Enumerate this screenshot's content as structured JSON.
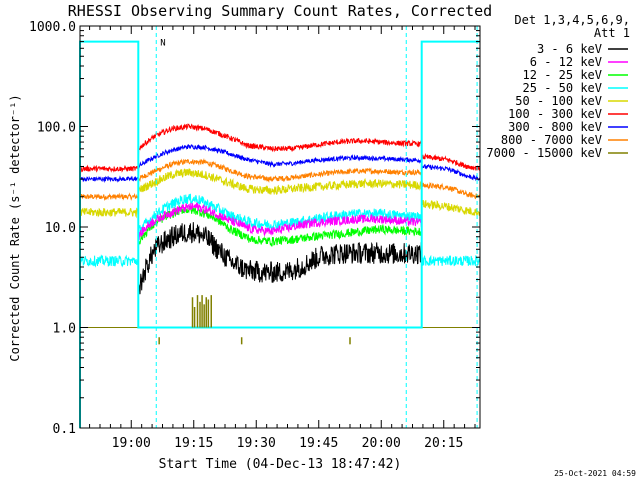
{
  "chart_data": {
    "type": "line",
    "title": "RHESSI Observing Summary Count Rates, Corrected",
    "xlabel": "Start Time (04-Dec-13 18:47:42)",
    "ylabel": "Corrected Count Rate (s⁻¹ detector⁻¹)",
    "x_unit": "minutes after 18:47:42",
    "xlim": [
      0,
      96
    ],
    "ylim": [
      0.1,
      1000
    ],
    "yscale": "log",
    "x_ticks": [
      {
        "x": 12.3,
        "label": "19:00"
      },
      {
        "x": 27.3,
        "label": "19:15"
      },
      {
        "x": 42.3,
        "label": "19:30"
      },
      {
        "x": 57.3,
        "label": "19:45"
      },
      {
        "x": 72.3,
        "label": "20:00"
      },
      {
        "x": 87.3,
        "label": "20:15"
      }
    ],
    "y_ticks": [
      {
        "y": 0.1,
        "label": "0.1"
      },
      {
        "y": 1,
        "label": "1.0"
      },
      {
        "y": 10,
        "label": "10.0"
      },
      {
        "y": 100,
        "label": "100.0"
      },
      {
        "y": 1000,
        "label": "1000.0"
      }
    ],
    "legend": {
      "placement": "right",
      "header": [
        "Det 1,3,4,5,6,9,",
        "Att 1"
      ]
    },
    "series": [
      {
        "name": "3 - 6 keV",
        "color": "#000000",
        "start": 14,
        "end": 82,
        "noise": 0.25,
        "points": [
          [
            14,
            2.2
          ],
          [
            16,
            4
          ],
          [
            18,
            6
          ],
          [
            21,
            7.5
          ],
          [
            24,
            8.6
          ],
          [
            27,
            9
          ],
          [
            30,
            8
          ],
          [
            33,
            6
          ],
          [
            36,
            4.5
          ],
          [
            40,
            3.7
          ],
          [
            45,
            3.5
          ],
          [
            50,
            3.6
          ],
          [
            54,
            4.2
          ],
          [
            58,
            5.2
          ],
          [
            63,
            5.5
          ],
          [
            68,
            5.5
          ],
          [
            72,
            5.5
          ],
          [
            76,
            5.4
          ],
          [
            80,
            5.5
          ],
          [
            82,
            5.5
          ]
        ]
      },
      {
        "name": "6 - 12 keV",
        "color": "#ff00ff",
        "start": 14,
        "end": 82,
        "noise": 0.1,
        "points": [
          [
            14,
            8
          ],
          [
            17,
            11
          ],
          [
            21,
            13.5
          ],
          [
            25,
            15.5
          ],
          [
            28,
            16
          ],
          [
            32,
            14
          ],
          [
            36,
            11.5
          ],
          [
            41,
            9.5
          ],
          [
            46,
            9
          ],
          [
            51,
            10
          ],
          [
            56,
            11
          ],
          [
            62,
            11.5
          ],
          [
            67,
            12
          ],
          [
            72,
            12
          ],
          [
            77,
            11.5
          ],
          [
            82,
            11
          ]
        ]
      },
      {
        "name": "12 - 25 keV",
        "color": "#00ff00",
        "start": 14,
        "end": 82,
        "noise": 0.1,
        "points": [
          [
            14,
            7
          ],
          [
            17,
            10
          ],
          [
            21,
            13
          ],
          [
            25,
            15
          ],
          [
            28,
            14.5
          ],
          [
            32,
            12.5
          ],
          [
            36,
            9.5
          ],
          [
            41,
            7.5
          ],
          [
            46,
            7.2
          ],
          [
            51,
            7.5
          ],
          [
            56,
            8
          ],
          [
            62,
            8.5
          ],
          [
            67,
            9
          ],
          [
            72,
            9.5
          ],
          [
            77,
            9.2
          ],
          [
            82,
            9
          ]
        ]
      },
      {
        "name": "25 - 50 keV",
        "color": "#00ffff",
        "start": 0,
        "end": 96,
        "noise": 0.12,
        "points": [
          [
            0,
            4.6
          ],
          [
            14,
            4.6
          ],
          [
            14,
            9
          ],
          [
            17,
            12
          ],
          [
            21,
            16
          ],
          [
            25,
            19
          ],
          [
            28,
            19
          ],
          [
            32,
            16
          ],
          [
            36,
            13
          ],
          [
            41,
            11
          ],
          [
            46,
            10.5
          ],
          [
            51,
            11
          ],
          [
            56,
            12
          ],
          [
            62,
            13
          ],
          [
            67,
            13.5
          ],
          [
            72,
            13.5
          ],
          [
            77,
            13
          ],
          [
            82,
            12.5
          ],
          [
            82,
            4.6
          ],
          [
            96,
            4.6
          ]
        ]
      },
      {
        "name": "50 - 100 keV",
        "color": "#d8d800",
        "start": 0,
        "end": 96,
        "noise": 0.1,
        "points": [
          [
            0,
            14
          ],
          [
            14,
            14
          ],
          [
            14,
            23
          ],
          [
            18,
            28
          ],
          [
            22,
            33
          ],
          [
            26,
            35
          ],
          [
            30,
            33
          ],
          [
            35,
            28
          ],
          [
            40,
            24
          ],
          [
            46,
            23
          ],
          [
            51,
            24
          ],
          [
            56,
            25
          ],
          [
            62,
            26
          ],
          [
            67,
            27
          ],
          [
            72,
            27
          ],
          [
            77,
            26.5
          ],
          [
            82,
            26
          ],
          [
            82,
            17
          ],
          [
            88,
            16
          ],
          [
            93,
            14.5
          ],
          [
            96,
            14
          ]
        ]
      },
      {
        "name": "100 - 300 keV",
        "color": "#ff0000",
        "start": 0,
        "end": 96,
        "noise": 0.06,
        "points": [
          [
            0,
            38
          ],
          [
            14,
            38
          ],
          [
            14,
            60
          ],
          [
            18,
            80
          ],
          [
            22,
            95
          ],
          [
            26,
            100
          ],
          [
            30,
            95
          ],
          [
            35,
            80
          ],
          [
            40,
            65
          ],
          [
            46,
            60
          ],
          [
            51,
            60
          ],
          [
            56,
            65
          ],
          [
            62,
            70
          ],
          [
            67,
            72
          ],
          [
            72,
            70
          ],
          [
            77,
            68
          ],
          [
            82,
            67
          ],
          [
            82,
            50
          ],
          [
            88,
            47
          ],
          [
            93,
            40
          ],
          [
            96,
            38
          ]
        ]
      },
      {
        "name": "300 - 800 keV",
        "color": "#0000ff",
        "start": 0,
        "end": 96,
        "noise": 0.05,
        "points": [
          [
            0,
            30
          ],
          [
            14,
            30
          ],
          [
            14,
            40
          ],
          [
            18,
            50
          ],
          [
            22,
            58
          ],
          [
            26,
            63
          ],
          [
            30,
            62
          ],
          [
            35,
            55
          ],
          [
            40,
            47
          ],
          [
            46,
            42
          ],
          [
            51,
            43
          ],
          [
            56,
            46
          ],
          [
            62,
            48
          ],
          [
            67,
            49
          ],
          [
            72,
            48
          ],
          [
            77,
            47
          ],
          [
            82,
            46
          ],
          [
            82,
            40
          ],
          [
            88,
            38
          ],
          [
            93,
            32
          ],
          [
            96,
            30
          ]
        ]
      },
      {
        "name": "800 - 7000 keV",
        "color": "#ff8000",
        "start": 0,
        "end": 96,
        "noise": 0.06,
        "points": [
          [
            0,
            20
          ],
          [
            14,
            20
          ],
          [
            14,
            30
          ],
          [
            18,
            36
          ],
          [
            22,
            42
          ],
          [
            26,
            45
          ],
          [
            30,
            44
          ],
          [
            35,
            38
          ],
          [
            40,
            32
          ],
          [
            46,
            30
          ],
          [
            51,
            31
          ],
          [
            56,
            33
          ],
          [
            62,
            35
          ],
          [
            67,
            36
          ],
          [
            72,
            36
          ],
          [
            77,
            35
          ],
          [
            82,
            35
          ],
          [
            82,
            26
          ],
          [
            88,
            25
          ],
          [
            93,
            21
          ],
          [
            96,
            20
          ]
        ]
      },
      {
        "name": "7000 - 15000 keV",
        "color": "#808000",
        "start": 0,
        "end": 96,
        "noise": 0,
        "points": [
          [
            14,
            1
          ],
          [
            82,
            1
          ]
        ]
      }
    ],
    "attenuator_state": {
      "color": "#00ffff",
      "label": "N",
      "segments": [
        [
          0,
          0.1
        ],
        [
          0,
          700
        ],
        [
          14,
          700
        ],
        [
          14,
          1
        ],
        [
          82,
          1
        ],
        [
          82,
          700
        ],
        [
          96,
          700
        ]
      ]
    },
    "vertical_markers": [
      {
        "x": 18.3,
        "color": "#00ffff"
      },
      {
        "x": 78.3,
        "color": "#00ffff"
      },
      {
        "x": 95.3,
        "color": "#00ffff"
      }
    ],
    "high_energy_spikes": {
      "color": "#808000",
      "upper": {
        "base": 1.0,
        "xs": [
          27.0,
          27.5,
          28.2,
          28.8,
          29.3,
          29.8,
          30.3,
          30.8,
          31.5
        ],
        "peaks": [
          2.0,
          1.6,
          2.1,
          1.8,
          2.1,
          1.7,
          2.0,
          1.9,
          2.1
        ]
      },
      "lower": {
        "base": 0.68,
        "xs": [
          19.0,
          38.8,
          64.8
        ],
        "peaks": [
          0.8,
          0.8,
          0.8
        ]
      }
    },
    "timestamp": "25-Oct-2021 04:59"
  }
}
